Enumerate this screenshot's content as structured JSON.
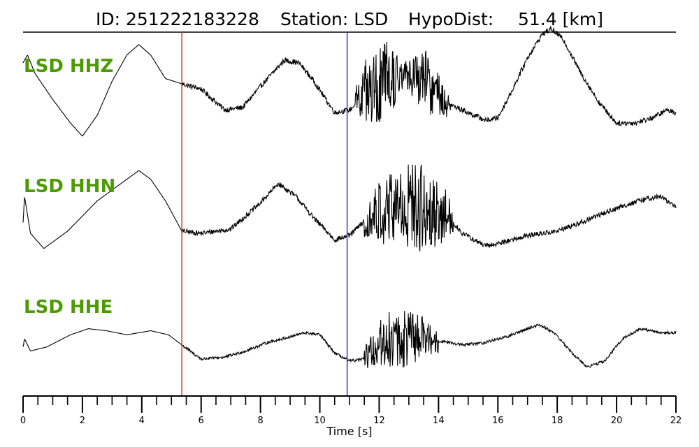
{
  "header": {
    "id_text": "ID: 251222183228",
    "station_text": "Station: LSD",
    "hypodist_label": "HypoDist:",
    "hypodist_value": "51.4 [km]"
  },
  "colors": {
    "channel_label": "#4e9a06",
    "p_pick": "#d62728",
    "s_pick": "#1f1fd6",
    "trace": "#000000"
  },
  "chart_data": {
    "type": "line",
    "title": "ID: 251222183228   Station: LSD   HypoDist:    51.4 [km]",
    "xlabel": "Time [s]",
    "xlim": [
      0,
      22
    ],
    "major_ticks": [
      0,
      2,
      4,
      6,
      8,
      10,
      12,
      14,
      16,
      18,
      20,
      22
    ],
    "minor_tick_step": 0.5,
    "tick_labels": [
      "0",
      "2",
      "4",
      "6",
      "8",
      "10",
      "12",
      "14",
      "16",
      "18",
      "20",
      "22"
    ],
    "picks": [
      {
        "name": "P",
        "time": 5.35,
        "color": "#d62728"
      },
      {
        "name": "S",
        "time": 10.92,
        "color": "#1f1fd6"
      }
    ],
    "series": [
      {
        "name": "LSD HHZ",
        "noise": 0.05,
        "noise_start": 5.35,
        "points": [
          [
            0,
            0.4
          ],
          [
            0.15,
            0.55
          ],
          [
            0.4,
            0.2
          ],
          [
            1.0,
            -0.3
          ],
          [
            1.6,
            -0.75
          ],
          [
            2.0,
            -1.0
          ],
          [
            2.5,
            -0.6
          ],
          [
            3.0,
            0.05
          ],
          [
            3.5,
            0.55
          ],
          [
            3.9,
            0.75
          ],
          [
            4.3,
            0.55
          ],
          [
            4.8,
            0.1
          ],
          [
            5.35,
            0.0
          ],
          [
            6.0,
            -0.1
          ],
          [
            6.8,
            -0.5
          ],
          [
            7.4,
            -0.45
          ],
          [
            8.0,
            -0.05
          ],
          [
            8.8,
            0.45
          ],
          [
            9.3,
            0.4
          ],
          [
            9.8,
            0.05
          ],
          [
            10.5,
            -0.55
          ],
          [
            11.0,
            -0.5
          ],
          [
            11.5,
            -0.25
          ],
          [
            12.0,
            -0.1
          ],
          [
            12.5,
            0.1
          ],
          [
            13.0,
            0.2
          ],
          [
            13.6,
            0.05
          ],
          [
            14.2,
            -0.35
          ],
          [
            15.0,
            -0.55
          ],
          [
            15.6,
            -0.7
          ],
          [
            16.0,
            -0.65
          ],
          [
            16.5,
            -0.1
          ],
          [
            17.0,
            0.5
          ],
          [
            17.5,
            0.95
          ],
          [
            17.8,
            1.05
          ],
          [
            18.2,
            0.85
          ],
          [
            18.8,
            0.2
          ],
          [
            19.4,
            -0.35
          ],
          [
            20.0,
            -0.75
          ],
          [
            20.6,
            -0.75
          ],
          [
            21.2,
            -0.65
          ],
          [
            21.7,
            -0.5
          ],
          [
            22.0,
            -0.55
          ]
        ],
        "bursts": [
          [
            11.2,
            12.8,
            0.85
          ],
          [
            12.8,
            14.4,
            0.55
          ]
        ]
      },
      {
        "name": "LSD HHN",
        "noise": 0.06,
        "noise_start": 5.35,
        "points": [
          [
            0,
            -0.3
          ],
          [
            0.05,
            0.3
          ],
          [
            0.25,
            -0.55
          ],
          [
            0.7,
            -0.9
          ],
          [
            1.5,
            -0.5
          ],
          [
            2.5,
            0.2
          ],
          [
            3.2,
            0.55
          ],
          [
            3.9,
            0.9
          ],
          [
            4.3,
            0.7
          ],
          [
            4.8,
            0.2
          ],
          [
            5.35,
            -0.5
          ],
          [
            6.0,
            -0.55
          ],
          [
            7.0,
            -0.45
          ],
          [
            8.0,
            0.15
          ],
          [
            8.6,
            0.6
          ],
          [
            9.2,
            0.3
          ],
          [
            9.8,
            -0.2
          ],
          [
            10.5,
            -0.7
          ],
          [
            11.0,
            -0.6
          ],
          [
            11.6,
            -0.2
          ],
          [
            12.5,
            0.05
          ],
          [
            13.5,
            0.05
          ],
          [
            14.3,
            -0.15
          ],
          [
            14.8,
            -0.55
          ],
          [
            15.6,
            -0.85
          ],
          [
            16.2,
            -0.75
          ],
          [
            17.0,
            -0.6
          ],
          [
            18.0,
            -0.5
          ],
          [
            18.8,
            -0.3
          ],
          [
            19.5,
            -0.1
          ],
          [
            20.3,
            0.1
          ],
          [
            21.0,
            0.25
          ],
          [
            21.5,
            0.3
          ],
          [
            22.0,
            0.05
          ]
        ],
        "bursts": [
          [
            11.5,
            14.5,
            1.1
          ]
        ]
      },
      {
        "name": "LSD HHE",
        "noise": 0.035,
        "noise_start": 5.35,
        "points": [
          [
            0,
            -0.15
          ],
          [
            0.05,
            0.05
          ],
          [
            0.25,
            -0.25
          ],
          [
            0.8,
            -0.15
          ],
          [
            1.6,
            0.15
          ],
          [
            2.2,
            0.3
          ],
          [
            2.8,
            0.25
          ],
          [
            3.5,
            0.15
          ],
          [
            4.3,
            0.25
          ],
          [
            4.9,
            0.15
          ],
          [
            5.35,
            -0.1
          ],
          [
            6.0,
            -0.45
          ],
          [
            6.8,
            -0.4
          ],
          [
            7.5,
            -0.25
          ],
          [
            8.2,
            -0.05
          ],
          [
            9.0,
            0.1
          ],
          [
            9.5,
            0.2
          ],
          [
            10.0,
            0.15
          ],
          [
            10.5,
            -0.3
          ],
          [
            11.0,
            -0.5
          ],
          [
            11.5,
            -0.45
          ],
          [
            12.0,
            -0.05
          ],
          [
            12.5,
            0.05
          ],
          [
            13.3,
            0.05
          ],
          [
            14.0,
            0.0
          ],
          [
            14.8,
            -0.1
          ],
          [
            15.5,
            -0.05
          ],
          [
            16.3,
            0.1
          ],
          [
            17.0,
            0.3
          ],
          [
            17.4,
            0.4
          ],
          [
            17.9,
            0.2
          ],
          [
            18.5,
            -0.3
          ],
          [
            19.0,
            -0.65
          ],
          [
            19.6,
            -0.5
          ],
          [
            20.2,
            0.05
          ],
          [
            20.8,
            0.3
          ],
          [
            21.5,
            0.2
          ],
          [
            22.0,
            0.2
          ]
        ],
        "bursts": [
          [
            11.5,
            14.0,
            0.75
          ]
        ]
      }
    ]
  }
}
